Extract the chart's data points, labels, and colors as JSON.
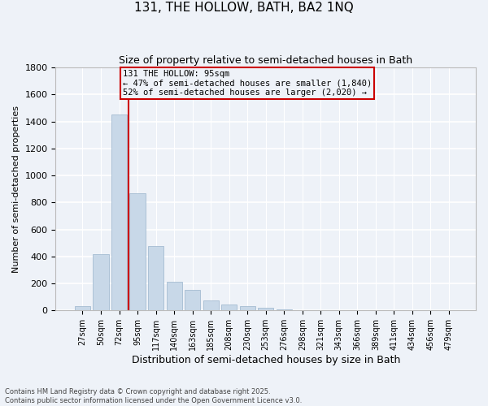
{
  "title1": "131, THE HOLLOW, BATH, BA2 1NQ",
  "title2": "Size of property relative to semi-detached houses in Bath",
  "xlabel": "Distribution of semi-detached houses by size in Bath",
  "ylabel": "Number of semi-detached properties",
  "annotation_line1": "131 THE HOLLOW: 95sqm",
  "annotation_line2": "← 47% of semi-detached houses are smaller (1,840)",
  "annotation_line3": "52% of semi-detached houses are larger (2,020) →",
  "footer1": "Contains HM Land Registry data © Crown copyright and database right 2025.",
  "footer2": "Contains public sector information licensed under the Open Government Licence v3.0.",
  "bar_color": "#c8d8e8",
  "bar_edge_color": "#9ab4cc",
  "annotation_box_color": "#cc0000",
  "vline_color": "#cc0000",
  "bg_color": "#eef2f8",
  "grid_color": "#ffffff",
  "categories": [
    "27sqm",
    "50sqm",
    "72sqm",
    "95sqm",
    "117sqm",
    "140sqm",
    "163sqm",
    "185sqm",
    "208sqm",
    "230sqm",
    "253sqm",
    "276sqm",
    "298sqm",
    "321sqm",
    "343sqm",
    "366sqm",
    "389sqm",
    "411sqm",
    "434sqm",
    "456sqm",
    "479sqm"
  ],
  "values": [
    30,
    420,
    1450,
    870,
    480,
    210,
    155,
    75,
    45,
    30,
    20,
    10,
    5,
    5,
    5,
    5,
    0,
    0,
    0,
    0,
    0
  ],
  "vline_index": 3,
  "ylim": [
    0,
    1800
  ],
  "yticks": [
    0,
    200,
    400,
    600,
    800,
    1000,
    1200,
    1400,
    1600,
    1800
  ]
}
